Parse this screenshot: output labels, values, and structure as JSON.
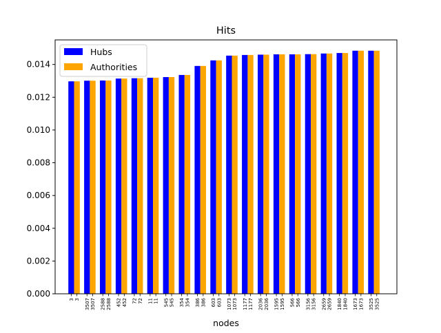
{
  "chart_data": {
    "type": "bar",
    "title": "Hits",
    "xlabel": "nodes",
    "ylabel": "",
    "ylim": [
      0,
      0.0155
    ],
    "yticks": [
      "0.000",
      "0.002",
      "0.004",
      "0.006",
      "0.008",
      "0.010",
      "0.012",
      "0.014"
    ],
    "ytick_values": [
      0,
      0.002,
      0.004,
      0.006,
      0.008,
      0.01,
      0.012,
      0.014
    ],
    "tick_labels": [
      "3",
      "3",
      "3507",
      "3507",
      "2588",
      "2588",
      "452",
      "452",
      "72",
      "72",
      "11",
      "11",
      "545",
      "545",
      "354",
      "354",
      "386",
      "386",
      "603",
      "603",
      "1073",
      "1073",
      "1177",
      "1177",
      "2036",
      "2036",
      "1595",
      "1595",
      "566",
      "566",
      "3156",
      "3156",
      "2659",
      "2659",
      "1840",
      "1840",
      "1673",
      "1673",
      "3525",
      "3525"
    ],
    "legend": {
      "placement": "upper-left"
    },
    "series": [
      {
        "name": "Hubs",
        "color": "#0000ff",
        "values": [
          0.01297,
          0.01301,
          0.01302,
          0.01314,
          0.01316,
          0.01319,
          0.01323,
          0.01336,
          0.01391,
          0.01425,
          0.01454,
          0.01458,
          0.0146,
          0.01462,
          0.01462,
          0.01463,
          0.01467,
          0.0147,
          0.01484,
          0.01484
        ]
      },
      {
        "name": "Authorities",
        "color": "#ffa500",
        "values": [
          0.01297,
          0.01301,
          0.01302,
          0.01314,
          0.01316,
          0.01319,
          0.01323,
          0.01336,
          0.01391,
          0.01425,
          0.01454,
          0.01458,
          0.0146,
          0.01462,
          0.01462,
          0.01463,
          0.01467,
          0.0147,
          0.01484,
          0.01484
        ]
      }
    ]
  }
}
